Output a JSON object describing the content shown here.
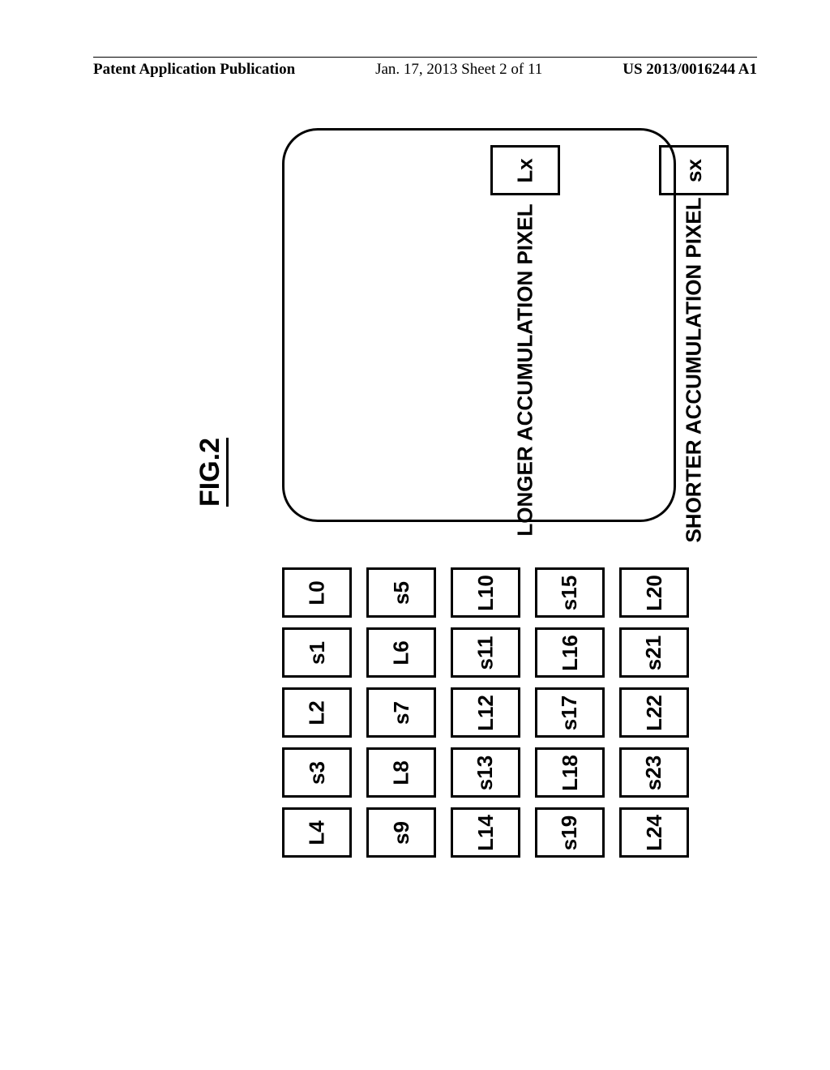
{
  "header": {
    "left": "Patent Application Publication",
    "mid": "Jan. 17, 2013  Sheet 2 of 11",
    "right": "US 2013/0016244 A1"
  },
  "figure_label": "FIG.2",
  "grid": {
    "rows": [
      [
        "L0",
        "s1",
        "L2",
        "s3",
        "L4"
      ],
      [
        "s5",
        "L6",
        "s7",
        "L8",
        "s9"
      ],
      [
        "L10",
        "s11",
        "L12",
        "s13",
        "L14"
      ],
      [
        "s15",
        "L16",
        "s17",
        "L18",
        "s19"
      ],
      [
        "L20",
        "s21",
        "L22",
        "s23",
        "L24"
      ]
    ]
  },
  "legend": {
    "items": [
      {
        "box": "Lx",
        "label": "LONGER ACCUMULATION PIXEL"
      },
      {
        "box": "sx",
        "label": "SHORTER ACCUMULATION PIXEL"
      }
    ]
  },
  "colors": {
    "bg": "#ffffff",
    "border": "#000000",
    "text": "#000000"
  }
}
